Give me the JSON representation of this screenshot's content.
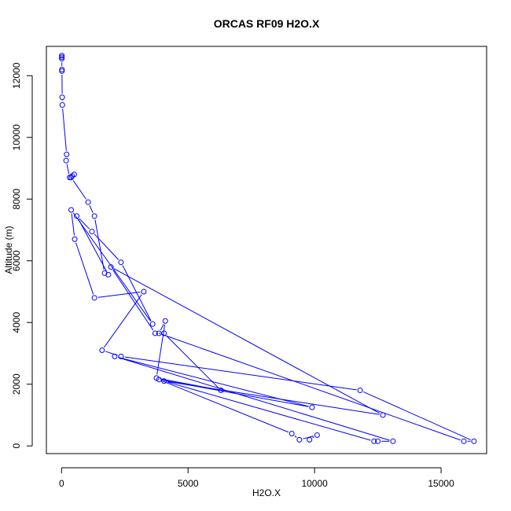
{
  "chart_data": {
    "type": "scatter",
    "title": "ORCAS RF09 H2O.X",
    "xlabel": "H2O.X",
    "ylabel": "Altitude (m)",
    "xlim": [
      -600,
      16800
    ],
    "ylim": [
      -250,
      12950
    ],
    "x_ticks": [
      0,
      5000,
      10000,
      15000
    ],
    "x_tick_labels": [
      "0",
      "5000",
      "10000",
      "15000"
    ],
    "y_ticks": [
      0,
      2000,
      4000,
      6000,
      8000,
      10000,
      12000
    ],
    "y_tick_labels": [
      "0",
      "2000",
      "4000",
      "6000",
      "8000",
      "10000",
      "12000"
    ],
    "grid": false,
    "legend": "none",
    "color": "#0000ff",
    "series": [
      {
        "points": [
          [
            10,
            12650
          ],
          [
            10,
            12600
          ],
          [
            10,
            12550
          ],
          [
            15,
            12200
          ],
          [
            15,
            12150
          ],
          [
            25,
            11300
          ],
          [
            30,
            11050
          ],
          [
            200,
            9450
          ],
          [
            180,
            9250
          ],
          [
            320,
            8700
          ],
          [
            420,
            8750
          ],
          [
            500,
            8800
          ],
          [
            380,
            8700
          ],
          [
            1050,
            7900
          ],
          [
            1300,
            7450
          ],
          [
            1700,
            5600
          ],
          [
            1850,
            5550
          ],
          [
            600,
            7450
          ],
          [
            1200,
            6950
          ],
          [
            2350,
            5950
          ],
          [
            3600,
            3950
          ],
          [
            380,
            7650
          ],
          [
            520,
            6700
          ],
          [
            1300,
            4800
          ],
          [
            3250,
            5000
          ],
          [
            1600,
            3100
          ],
          [
            2350,
            2900
          ],
          [
            11800,
            1800
          ],
          [
            16300,
            150
          ],
          [
            15900,
            150
          ],
          [
            3850,
            3650
          ],
          [
            4100,
            4050
          ],
          [
            3750,
            2200
          ],
          [
            6300,
            1800
          ],
          [
            4050,
            3650
          ],
          [
            3700,
            3650
          ],
          [
            1950,
            5800
          ],
          [
            12700,
            1000
          ],
          [
            4050,
            2100
          ],
          [
            12350,
            150
          ],
          [
            12500,
            150
          ],
          [
            13100,
            150
          ],
          [
            2100,
            2900
          ],
          [
            9900,
            1250
          ],
          [
            3850,
            2150
          ],
          [
            9100,
            400
          ],
          [
            9400,
            200
          ],
          [
            10100,
            350
          ],
          [
            9800,
            200
          ]
        ]
      }
    ]
  }
}
